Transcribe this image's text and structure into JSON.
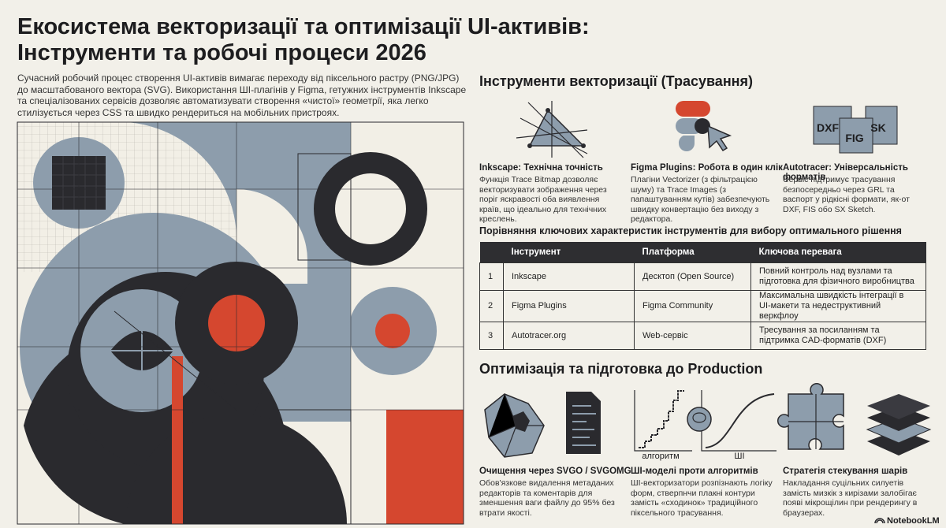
{
  "header": {
    "title": [
      "Екосистема векторизації та оптимізації UI-активів:",
      "Інструменти та робочі процеси 2026"
    ],
    "intro": "Сучасний робочий процес створення UI-активів вимагає переходу від піксельного растру (PNG/JPG) до масштабованого вектора (SVG). Використання ШІ-плагінів у Figma, гетужних інструментів Inkscape та спеціалізованих сервісів дозволяє автоматизувати створення «чистої» геометрії, яка легко стилізується через CSS та швидко рендериться на мобільних пристроях."
  },
  "vectorization": {
    "heading": "Інструменти векторизації (Трасування)",
    "tools": [
      {
        "title": "Inkscape: Технічна точність",
        "description": "Функція Trace Bitmap дозволяє векторизувати зображення через поріг яскравості оба виявлення країв, що ідеально для технічних креслень."
      },
      {
        "title": "Figma Plugins: Робота в один клік",
        "description": "Плагіни Vectorizer (з фільтрацією шуму) та Trace Images (з папаштуванням кутів) забезпечують швидку конвертацію без виходу з редактора."
      },
      {
        "title": "Autotracer: Універсальність форматів",
        "description": "Сервіс підтримує трасування безпосередньо через GRL та васпорт у рідкісні формати, як-от DXF, FIS обо SX Sketch.",
        "icon_labels": [
          "DXF",
          "FIG",
          "SK"
        ]
      }
    ]
  },
  "table": {
    "heading": "Порівняння ключових характеристик інструментів для вибору оптимального рішення",
    "columns": [
      "Інструмент",
      "Платформа",
      "Ключова перевага"
    ],
    "rows": [
      [
        1,
        "Inkscape",
        "Десктоп (Open Source)",
        "Повний контроль над вузлами та підготовка для фізичного виробництва"
      ],
      [
        2,
        "Figma Plugins",
        "Figma Community",
        "Максимальна швидкість інтеграції в UI-макети та недеструктивний веркфлоу"
      ],
      [
        3,
        "Autotracer.org",
        "Web-сервіс",
        "Тресування за посиланням та підтримка CAD-форматів (DXF)"
      ]
    ]
  },
  "optimization": {
    "heading": "Оптимізація та підготовка до Production",
    "items": [
      {
        "title": "Очищення через SVGO / SVGOMG",
        "description": "Обов'язкове видалення метаданих редакторів та коментарів для зменшення ваги файлу до 95% без втрати якості."
      },
      {
        "title": "ШІ-моделі проти алгоритмів",
        "description": "ШІ-векторизатори розпізнають логіку форм, стверпнчи плакні контури замість «сходинок» традиційного піксельного трасування.",
        "icon_labels": [
          "алгоритм",
          "ШІ"
        ]
      },
      {
        "title": "Стратегія стекування шарів",
        "description": "Накладання суцільних силуетів замість мизкік з кирізами залобігає появі мікрощілин при рендерингу в браузерах."
      }
    ]
  },
  "footer": {
    "brand": "NotebookLM"
  }
}
